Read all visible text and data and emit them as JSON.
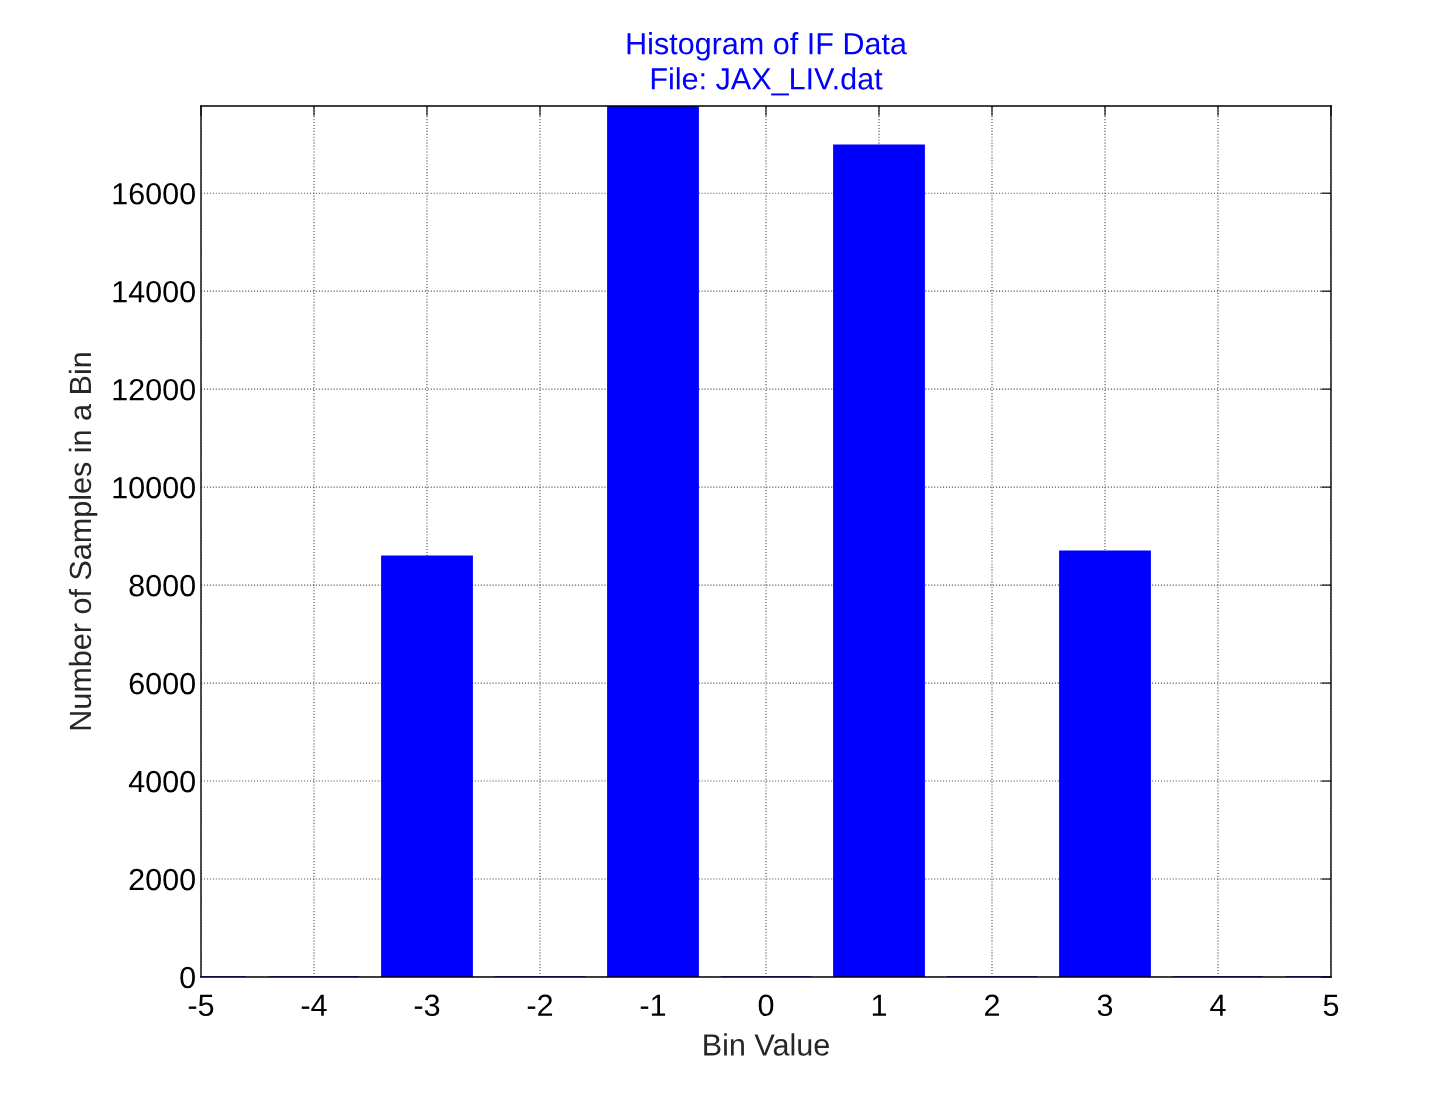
{
  "chart_data": {
    "type": "bar",
    "title": "Histogram of IF Data\nFile: JAX_LIV.dat",
    "xlabel": "Bin Value",
    "ylabel": "Number of Samples in a Bin",
    "x": [
      -5,
      -4,
      -3,
      -2,
      -1,
      0,
      1,
      2,
      3,
      4,
      5
    ],
    "values": [
      0,
      0,
      8590,
      0,
      17780,
      0,
      16980,
      0,
      8690,
      0,
      0
    ],
    "color": "#0000ff",
    "xlim": [
      -5,
      5
    ],
    "xticks": [
      -5,
      -4,
      -3,
      -2,
      -1,
      0,
      1,
      2,
      3,
      4,
      5
    ],
    "ylim": [
      0,
      17780
    ],
    "yticks": [
      0,
      2000,
      4000,
      6000,
      8000,
      10000,
      12000,
      14000,
      16000
    ],
    "grid": true
  }
}
